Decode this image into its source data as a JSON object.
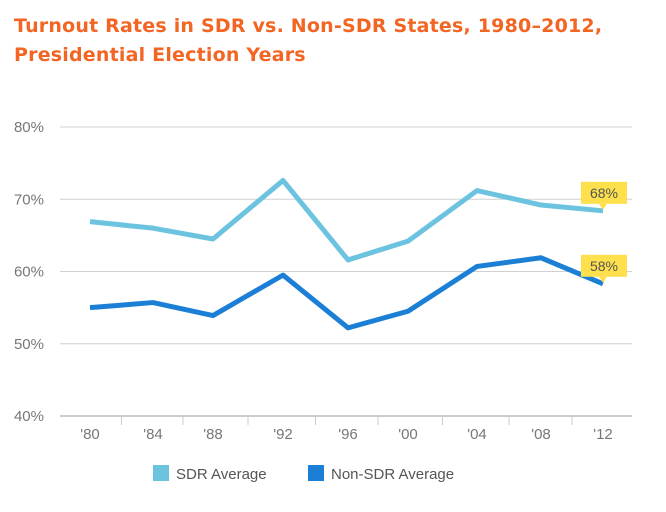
{
  "title_line1": "Turnout Rates in SDR vs. Non-SDR States, 1980–2012,",
  "title_line2": "Presidential Election Years",
  "colors": {
    "title": "#f26522",
    "sdr": "#6cc3e0",
    "nonsdr": "#1b7fd6",
    "callout": "#fde04c",
    "grid": "#d0d0d0"
  },
  "chart_data": {
    "type": "line",
    "title": "Turnout Rates in SDR vs. Non-SDR States, 1980–2012, Presidential Election Years",
    "categories": [
      "'80",
      "'84",
      "'88",
      "'92",
      "'96",
      "'00",
      "'04",
      "'08",
      "'12"
    ],
    "y_tick_labels": [
      "40%",
      "50%",
      "60%",
      "70%",
      "80%"
    ],
    "y_ticks": [
      40,
      50,
      60,
      70,
      80
    ],
    "ylim": [
      40,
      80
    ],
    "grid": true,
    "legend_position": "bottom",
    "series": [
      {
        "name": "SDR Average",
        "color": "#6cc3e0",
        "values": [
          66.9,
          66.0,
          64.5,
          72.6,
          61.6,
          64.2,
          71.2,
          69.2,
          68.4
        ]
      },
      {
        "name": "Non-SDR Average",
        "color": "#1b7fd6",
        "values": [
          55.0,
          55.7,
          53.9,
          59.5,
          52.2,
          54.5,
          60.7,
          61.9,
          58.3
        ]
      }
    ],
    "annotations": [
      {
        "series": 0,
        "label": "68%"
      },
      {
        "series": 1,
        "label": "58%"
      }
    ]
  }
}
